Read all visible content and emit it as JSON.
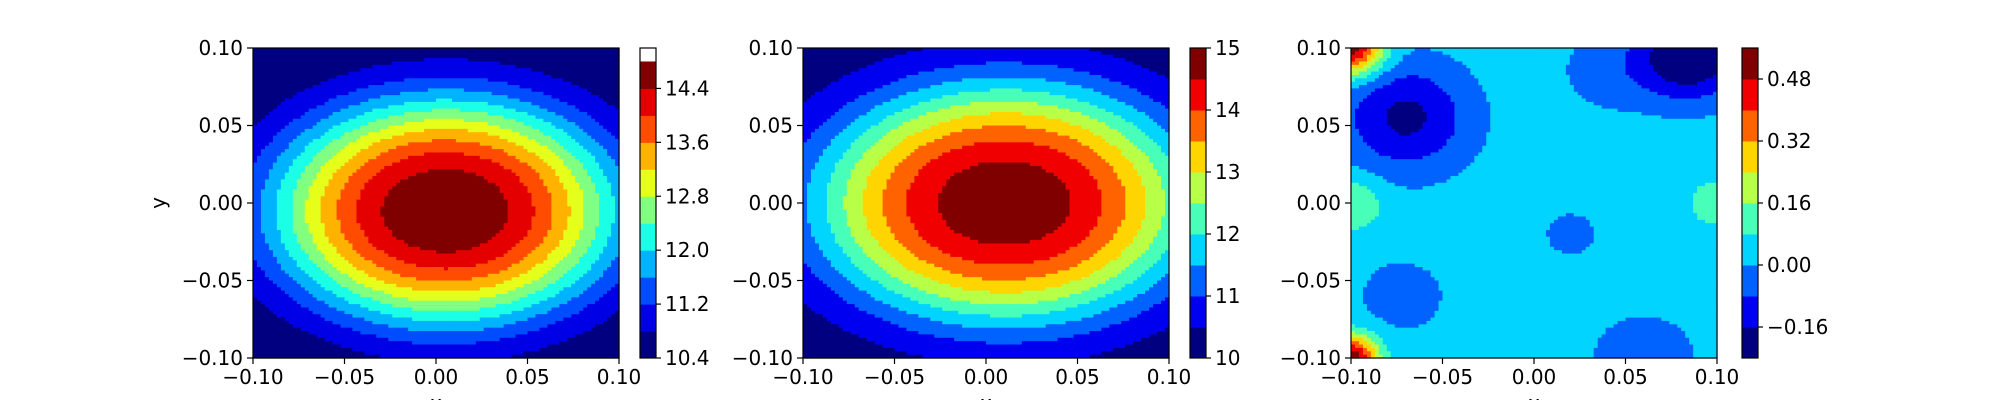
{
  "chart_data": [
    {
      "type": "contour",
      "ylabel": "y",
      "xlabel": "x",
      "xlim": [
        -0.1,
        0.1
      ],
      "ylim": [
        -0.1,
        0.1
      ],
      "x_ticks": [
        "−0.10",
        "−0.05",
        "0.00",
        "0.05",
        "0.10"
      ],
      "y_ticks": [
        "0.10",
        "0.05",
        "0.00",
        "−0.05",
        "−0.10"
      ],
      "colorbar": {
        "min": 10.4,
        "max": 15.0,
        "levels": [
          10.4,
          10.8,
          11.2,
          11.6,
          12.0,
          12.4,
          12.8,
          13.2,
          13.6,
          14.0,
          14.4,
          14.8
        ],
        "tick_values": [
          10.4,
          11.2,
          12.0,
          12.8,
          13.6,
          14.4
        ],
        "tick_labels": [
          "10.4",
          "11.2",
          "12.0",
          "12.8",
          "13.6",
          "14.4"
        ]
      },
      "field": {
        "kind": "dome",
        "peak": 14.8,
        "edge": 10.5,
        "cx": 0.005,
        "cy": -0.005,
        "wx": 0.55,
        "wy": 0.85
      }
    },
    {
      "type": "contour",
      "xlabel": "x",
      "xlim": [
        -0.1,
        0.1
      ],
      "ylim": [
        -0.1,
        0.1
      ],
      "x_ticks": [
        "−0.10",
        "−0.05",
        "0.00",
        "0.05",
        "0.10"
      ],
      "y_ticks": [
        "0.10",
        "0.05",
        "0.00",
        "−0.05",
        "−0.10"
      ],
      "colorbar": {
        "min": 10.0,
        "max": 15.0,
        "levels": [
          10.0,
          10.5,
          11.0,
          11.5,
          12.0,
          12.5,
          13.0,
          13.5,
          14.0,
          14.5,
          15.0
        ],
        "tick_values": [
          10,
          11,
          12,
          13,
          14,
          15
        ],
        "tick_labels": [
          "10",
          "11",
          "12",
          "13",
          "14",
          "15"
        ]
      },
      "field": {
        "kind": "dome",
        "peak": 14.9,
        "edge": 10.2,
        "cx": 0.01,
        "cy": 0.0,
        "wx": 0.6,
        "wy": 0.9
      }
    },
    {
      "type": "contour",
      "xlabel": "x",
      "xlim": [
        -0.1,
        0.1
      ],
      "ylim": [
        -0.1,
        0.1
      ],
      "x_ticks": [
        "−0.10",
        "−0.05",
        "0.00",
        "0.05",
        "0.10"
      ],
      "y_ticks": [
        "0.10",
        "0.05",
        "0.00",
        "−0.05",
        "−0.10"
      ],
      "colorbar": {
        "min": -0.24,
        "max": 0.56,
        "levels": [
          -0.24,
          -0.16,
          -0.08,
          0.0,
          0.08,
          0.16,
          0.24,
          0.32,
          0.4,
          0.48,
          0.56
        ],
        "tick_values": [
          -0.16,
          0.0,
          0.16,
          0.32,
          0.48
        ],
        "tick_labels": [
          "−0.16",
          "0.00",
          "0.16",
          "0.32",
          "0.48"
        ]
      },
      "field": {
        "kind": "error",
        "base": 0.04,
        "blobs": [
          {
            "x": -0.07,
            "y": 0.055,
            "amp": -0.22,
            "s": 0.025
          },
          {
            "x": 0.085,
            "y": 0.095,
            "amp": -0.3,
            "s": 0.02
          },
          {
            "x": -0.072,
            "y": -0.06,
            "amp": -0.08,
            "s": 0.018
          },
          {
            "x": 0.02,
            "y": -0.02,
            "amp": -0.07,
            "s": 0.012
          },
          {
            "x": 0.06,
            "y": -0.1,
            "amp": -0.1,
            "s": 0.02
          },
          {
            "x": 0.04,
            "y": 0.085,
            "amp": -0.07,
            "s": 0.02
          },
          {
            "x": -0.1,
            "y": 0.1,
            "amp": 0.5,
            "s": 0.012
          },
          {
            "x": -0.1,
            "y": -0.1,
            "amp": 0.5,
            "s": 0.01
          },
          {
            "x": -0.1,
            "y": 0.0,
            "amp": 0.12,
            "s": 0.012
          },
          {
            "x": 0.1,
            "y": 0.0,
            "amp": 0.08,
            "s": 0.012
          }
        ]
      }
    }
  ]
}
